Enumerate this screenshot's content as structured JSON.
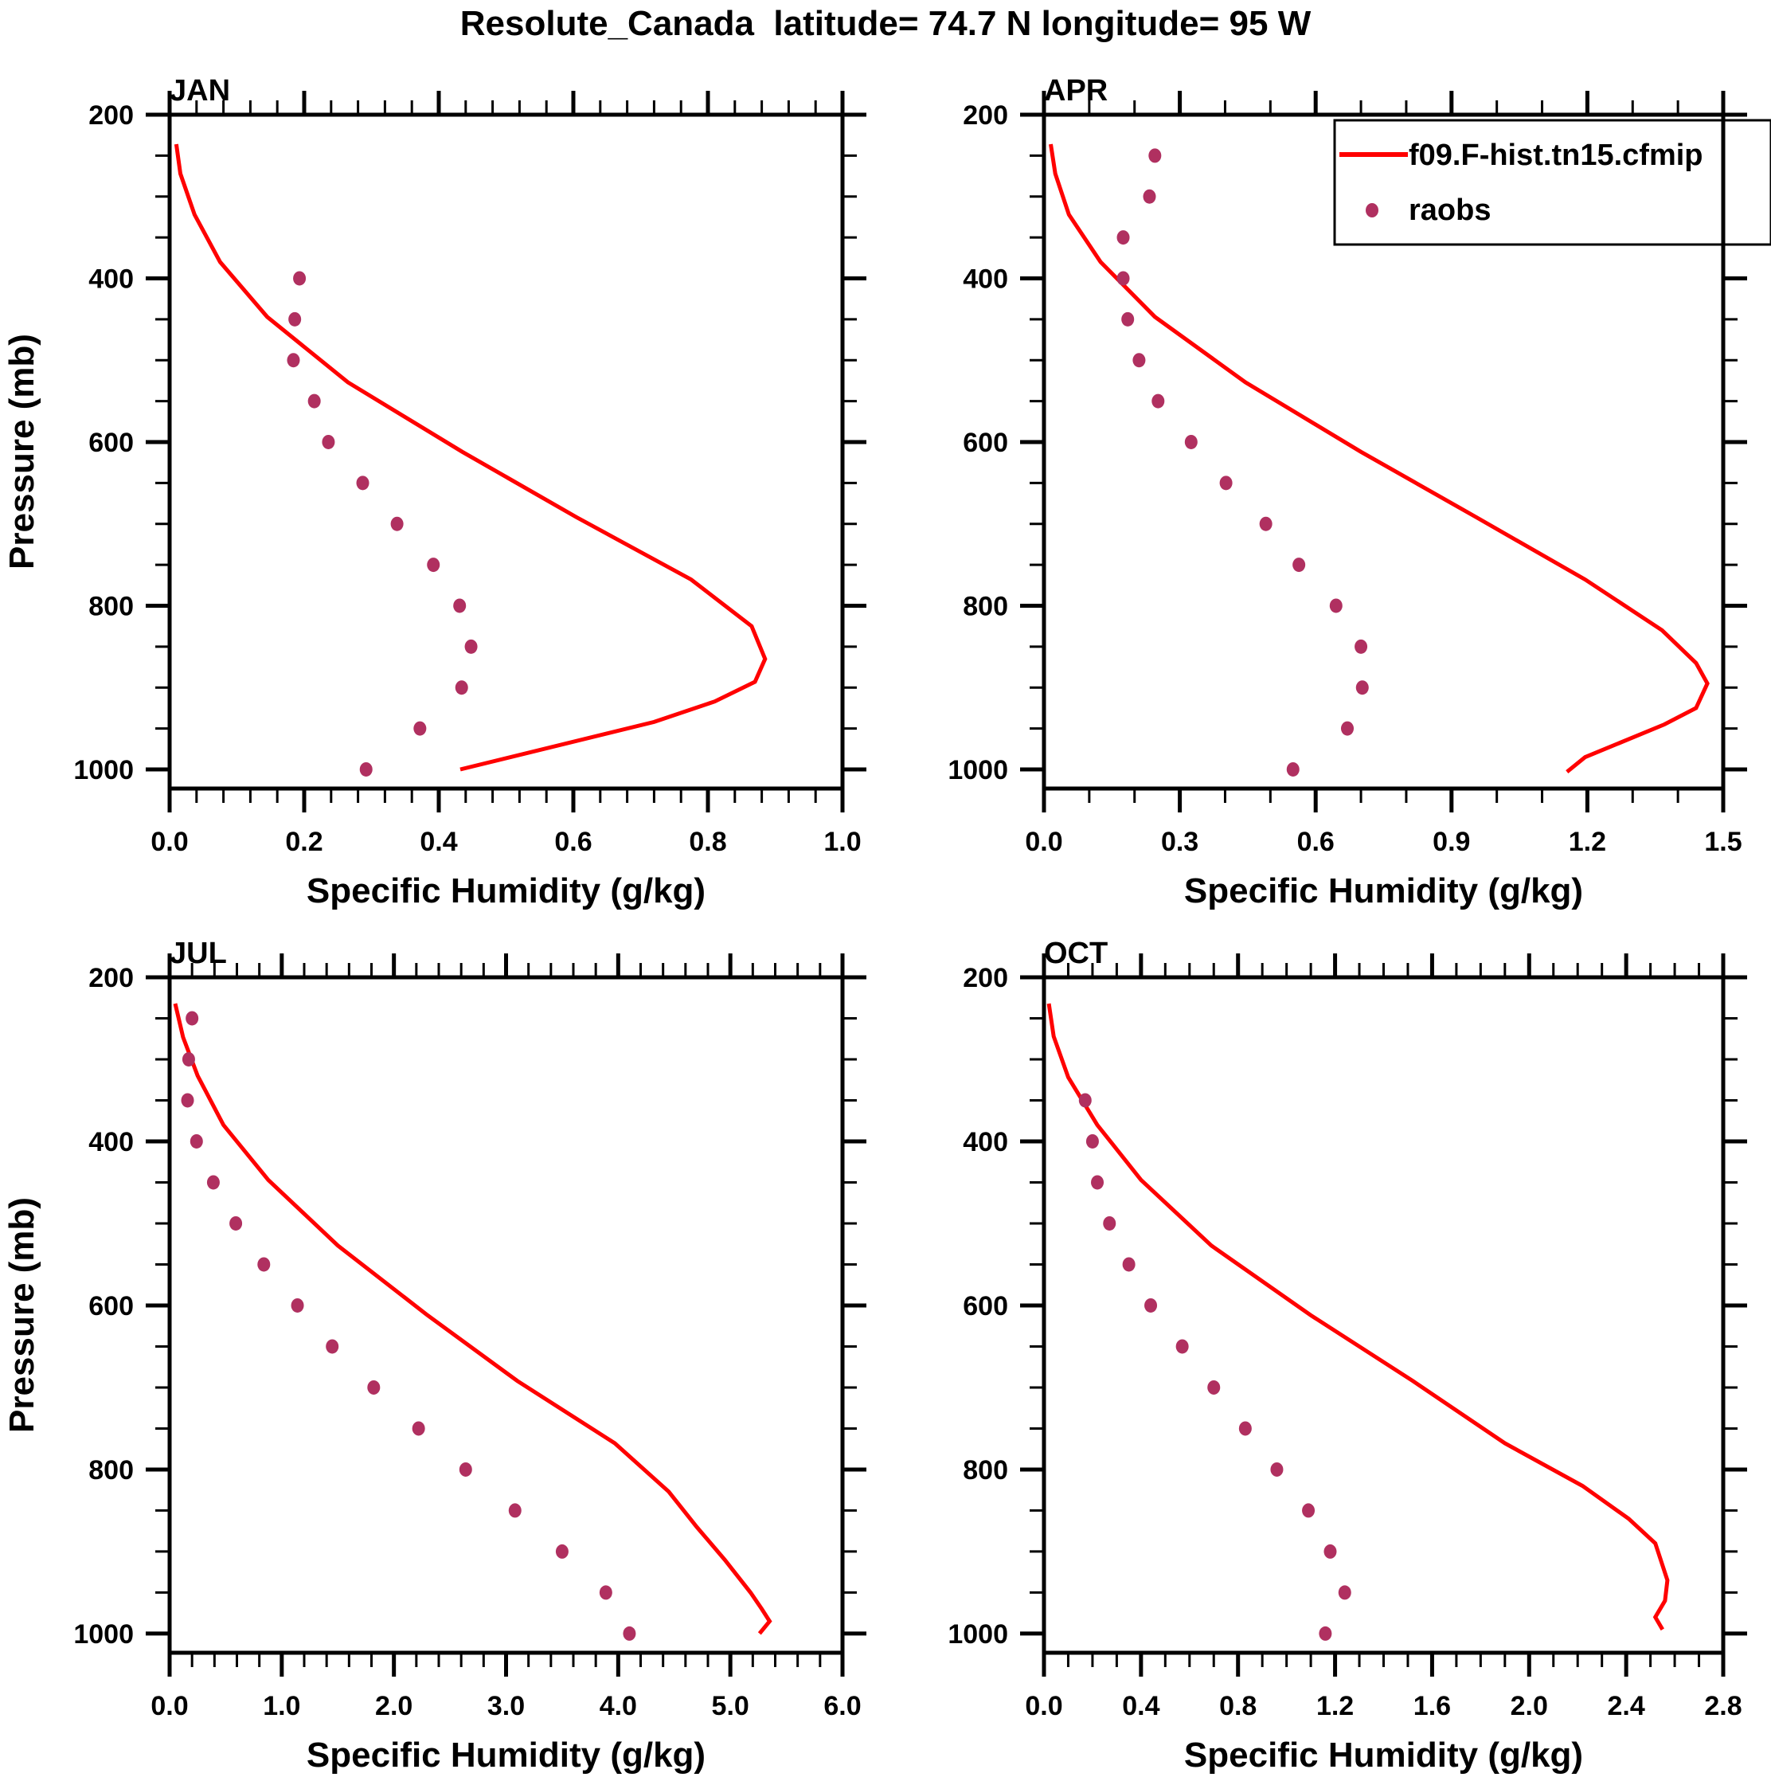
{
  "chart_data": {
    "type": "line",
    "title": "Resolute_Canada  latitude= 74.7 N longitude= 95 W",
    "legend": {
      "placement": "top-right of APR panel",
      "entries": [
        {
          "label": "f09.F-hist.tn15.cfmip",
          "kind": "line",
          "color": "#ff0000"
        },
        {
          "label": "raobs",
          "kind": "marker",
          "color": "#b03060"
        }
      ]
    },
    "colors": {
      "model": "#ff0000",
      "obs": "#b03060",
      "axis": "#000000"
    },
    "ylabel": "Pressure (mb)",
    "ylim": [
      200,
      1000
    ],
    "y_reversed": true,
    "y_ticks": [
      200,
      400,
      600,
      800,
      1000
    ],
    "y_minor_step": 50,
    "panels": [
      {
        "name": "JAN",
        "xlabel": "Specific Humidity (g/kg)",
        "xlim": [
          0.0,
          1.0
        ],
        "x_ticks": [
          "0.0",
          "0.2",
          "0.4",
          "0.6",
          "0.8",
          "1.0"
        ],
        "x_minor_per_major": 4,
        "series": [
          {
            "name": "f09.F-hist.tn15.cfmip",
            "type": "line",
            "p": [
              236,
              272,
              322,
              380,
              447,
              527,
              612,
              692,
              768,
              825,
              865,
              893,
              917,
              942,
              1000
            ],
            "q": [
              0.01,
              0.016,
              0.037,
              0.075,
              0.145,
              0.265,
              0.435,
              0.605,
              0.775,
              0.865,
              0.885,
              0.87,
              0.81,
              0.72,
              0.432
            ]
          },
          {
            "name": "raobs",
            "type": "scatter",
            "p": [
              400,
              450,
              500,
              550,
              600,
              650,
              700,
              750,
              800,
              850,
              900,
              950,
              1000
            ],
            "q": [
              0.193,
              0.186,
              0.184,
              0.215,
              0.236,
              0.287,
              0.338,
              0.392,
              0.431,
              0.448,
              0.434,
              0.372,
              0.292
            ]
          }
        ]
      },
      {
        "name": "APR",
        "xlabel": "Specific Humidity (g/kg)",
        "xlim": [
          0.0,
          1.5
        ],
        "x_ticks": [
          "0.0",
          "0.3",
          "0.6",
          "0.9",
          "1.2",
          "1.5"
        ],
        "x_minor_per_major": 2,
        "series": [
          {
            "name": "f09.F-hist.tn15.cfmip",
            "type": "line",
            "p": [
              236,
              272,
              322,
              380,
              447,
              527,
              612,
              692,
              768,
              830,
              870,
              895,
              925,
              945,
              985,
              1003
            ],
            "q": [
              0.015,
              0.025,
              0.055,
              0.125,
              0.245,
              0.445,
              0.7,
              0.955,
              1.195,
              1.365,
              1.44,
              1.465,
              1.44,
              1.37,
              1.195,
              1.155
            ]
          },
          {
            "name": "raobs",
            "type": "scatter",
            "p": [
              250,
              300,
              350,
              400,
              450,
              500,
              550,
              600,
              650,
              700,
              750,
              800,
              850,
              900,
              950,
              1000
            ],
            "q": [
              0.245,
              0.233,
              0.175,
              0.175,
              0.185,
              0.21,
              0.252,
              0.325,
              0.402,
              0.49,
              0.563,
              0.645,
              0.7,
              0.703,
              0.67,
              0.55
            ]
          }
        ]
      },
      {
        "name": "JUL",
        "xlabel": "Specific Humidity (g/kg)",
        "xlim": [
          0.0,
          6.0
        ],
        "x_ticks": [
          "0.0",
          "1.0",
          "2.0",
          "3.0",
          "4.0",
          "5.0",
          "6.0"
        ],
        "x_minor_per_major": 4,
        "series": [
          {
            "name": "f09.F-hist.tn15.cfmip",
            "type": "line",
            "p": [
              232,
              273,
              320,
              380,
              447,
              527,
              612,
              692,
              768,
              827,
              870,
              910,
              950,
              970,
              985,
              1000
            ],
            "q": [
              0.05,
              0.12,
              0.25,
              0.48,
              0.88,
              1.5,
              2.3,
              3.1,
              3.97,
              4.45,
              4.7,
              4.95,
              5.18,
              5.28,
              5.35,
              5.26
            ]
          },
          {
            "name": "raobs",
            "type": "scatter",
            "p": [
              250,
              300,
              350,
              400,
              450,
              500,
              550,
              600,
              650,
              700,
              750,
              800,
              850,
              900,
              950,
              1000
            ],
            "q": [
              0.2,
              0.17,
              0.16,
              0.24,
              0.39,
              0.59,
              0.84,
              1.14,
              1.45,
              1.82,
              2.22,
              2.64,
              3.08,
              3.5,
              3.89,
              4.1
            ]
          }
        ]
      },
      {
        "name": "OCT",
        "xlabel": "Specific Humidity (g/kg)",
        "xlim": [
          0.0,
          2.8
        ],
        "x_ticks": [
          "0.0",
          "0.4",
          "0.8",
          "1.2",
          "1.6",
          "2.0",
          "2.4",
          "2.8"
        ],
        "x_minor_per_major": 3,
        "series": [
          {
            "name": "f09.F-hist.tn15.cfmip",
            "type": "line",
            "p": [
              232,
              272,
              322,
              380,
              447,
              527,
              612,
              692,
              768,
              820,
              860,
              890,
              935,
              960,
              980,
              995
            ],
            "q": [
              0.02,
              0.04,
              0.1,
              0.22,
              0.4,
              0.69,
              1.1,
              1.52,
              1.9,
              2.22,
              2.41,
              2.52,
              2.57,
              2.56,
              2.52,
              2.55
            ]
          },
          {
            "name": "raobs",
            "type": "scatter",
            "p": [
              350,
              400,
              450,
              500,
              550,
              600,
              650,
              700,
              750,
              800,
              850,
              900,
              950,
              1000
            ],
            "q": [
              0.17,
              0.2,
              0.22,
              0.27,
              0.35,
              0.44,
              0.57,
              0.7,
              0.83,
              0.96,
              1.09,
              1.18,
              1.24,
              1.16
            ]
          }
        ]
      }
    ]
  }
}
